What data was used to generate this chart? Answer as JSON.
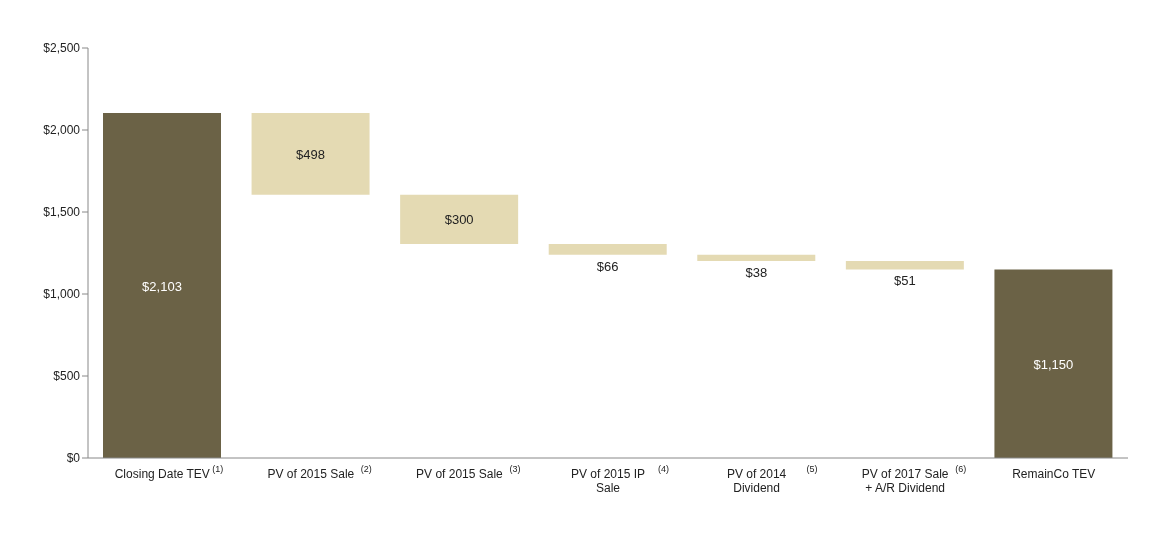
{
  "chart_data": {
    "type": "bar",
    "categories": [
      "Closing Date TEV$^{(1)}$",
      "PV of 2015 Sale$^{(2)}$",
      "PV of 2015 Sale$^{(3)}$",
      "PV of 2015 IP Sale$^{(4)}$",
      "PV of 2014 Dividend$^{(5)}$",
      "PV of 2017 Sale + A/R Dividend$^{(6)}$",
      "RemainCo TEV"
    ],
    "values": [
      2103,
      498,
      300,
      66,
      38,
      51,
      1150
    ],
    "base": [
      0,
      1605,
      1305,
      1239,
      1201,
      1150,
      0
    ],
    "colors": [
      "#6b6246",
      "#e4dab3",
      "#e4dab3",
      "#e4dab3",
      "#e4dab3",
      "#e4dab3",
      "#6b6246"
    ],
    "value_labels": [
      "$2,103",
      "$498",
      "$300",
      "$66",
      "$38",
      "$51",
      "$1,150"
    ],
    "ylim": [
      0,
      2500
    ],
    "yticks": [
      {
        "value": 0,
        "label": "$0"
      },
      {
        "value": 500,
        "label": "$500"
      },
      {
        "value": 1000,
        "label": "$1,000"
      },
      {
        "value": 1500,
        "label": "$1,500"
      },
      {
        "value": 2000,
        "label": "$2,000"
      },
      {
        "value": 2500,
        "label": "$2,500"
      }
    ],
    "grid": false,
    "legend": false
  }
}
